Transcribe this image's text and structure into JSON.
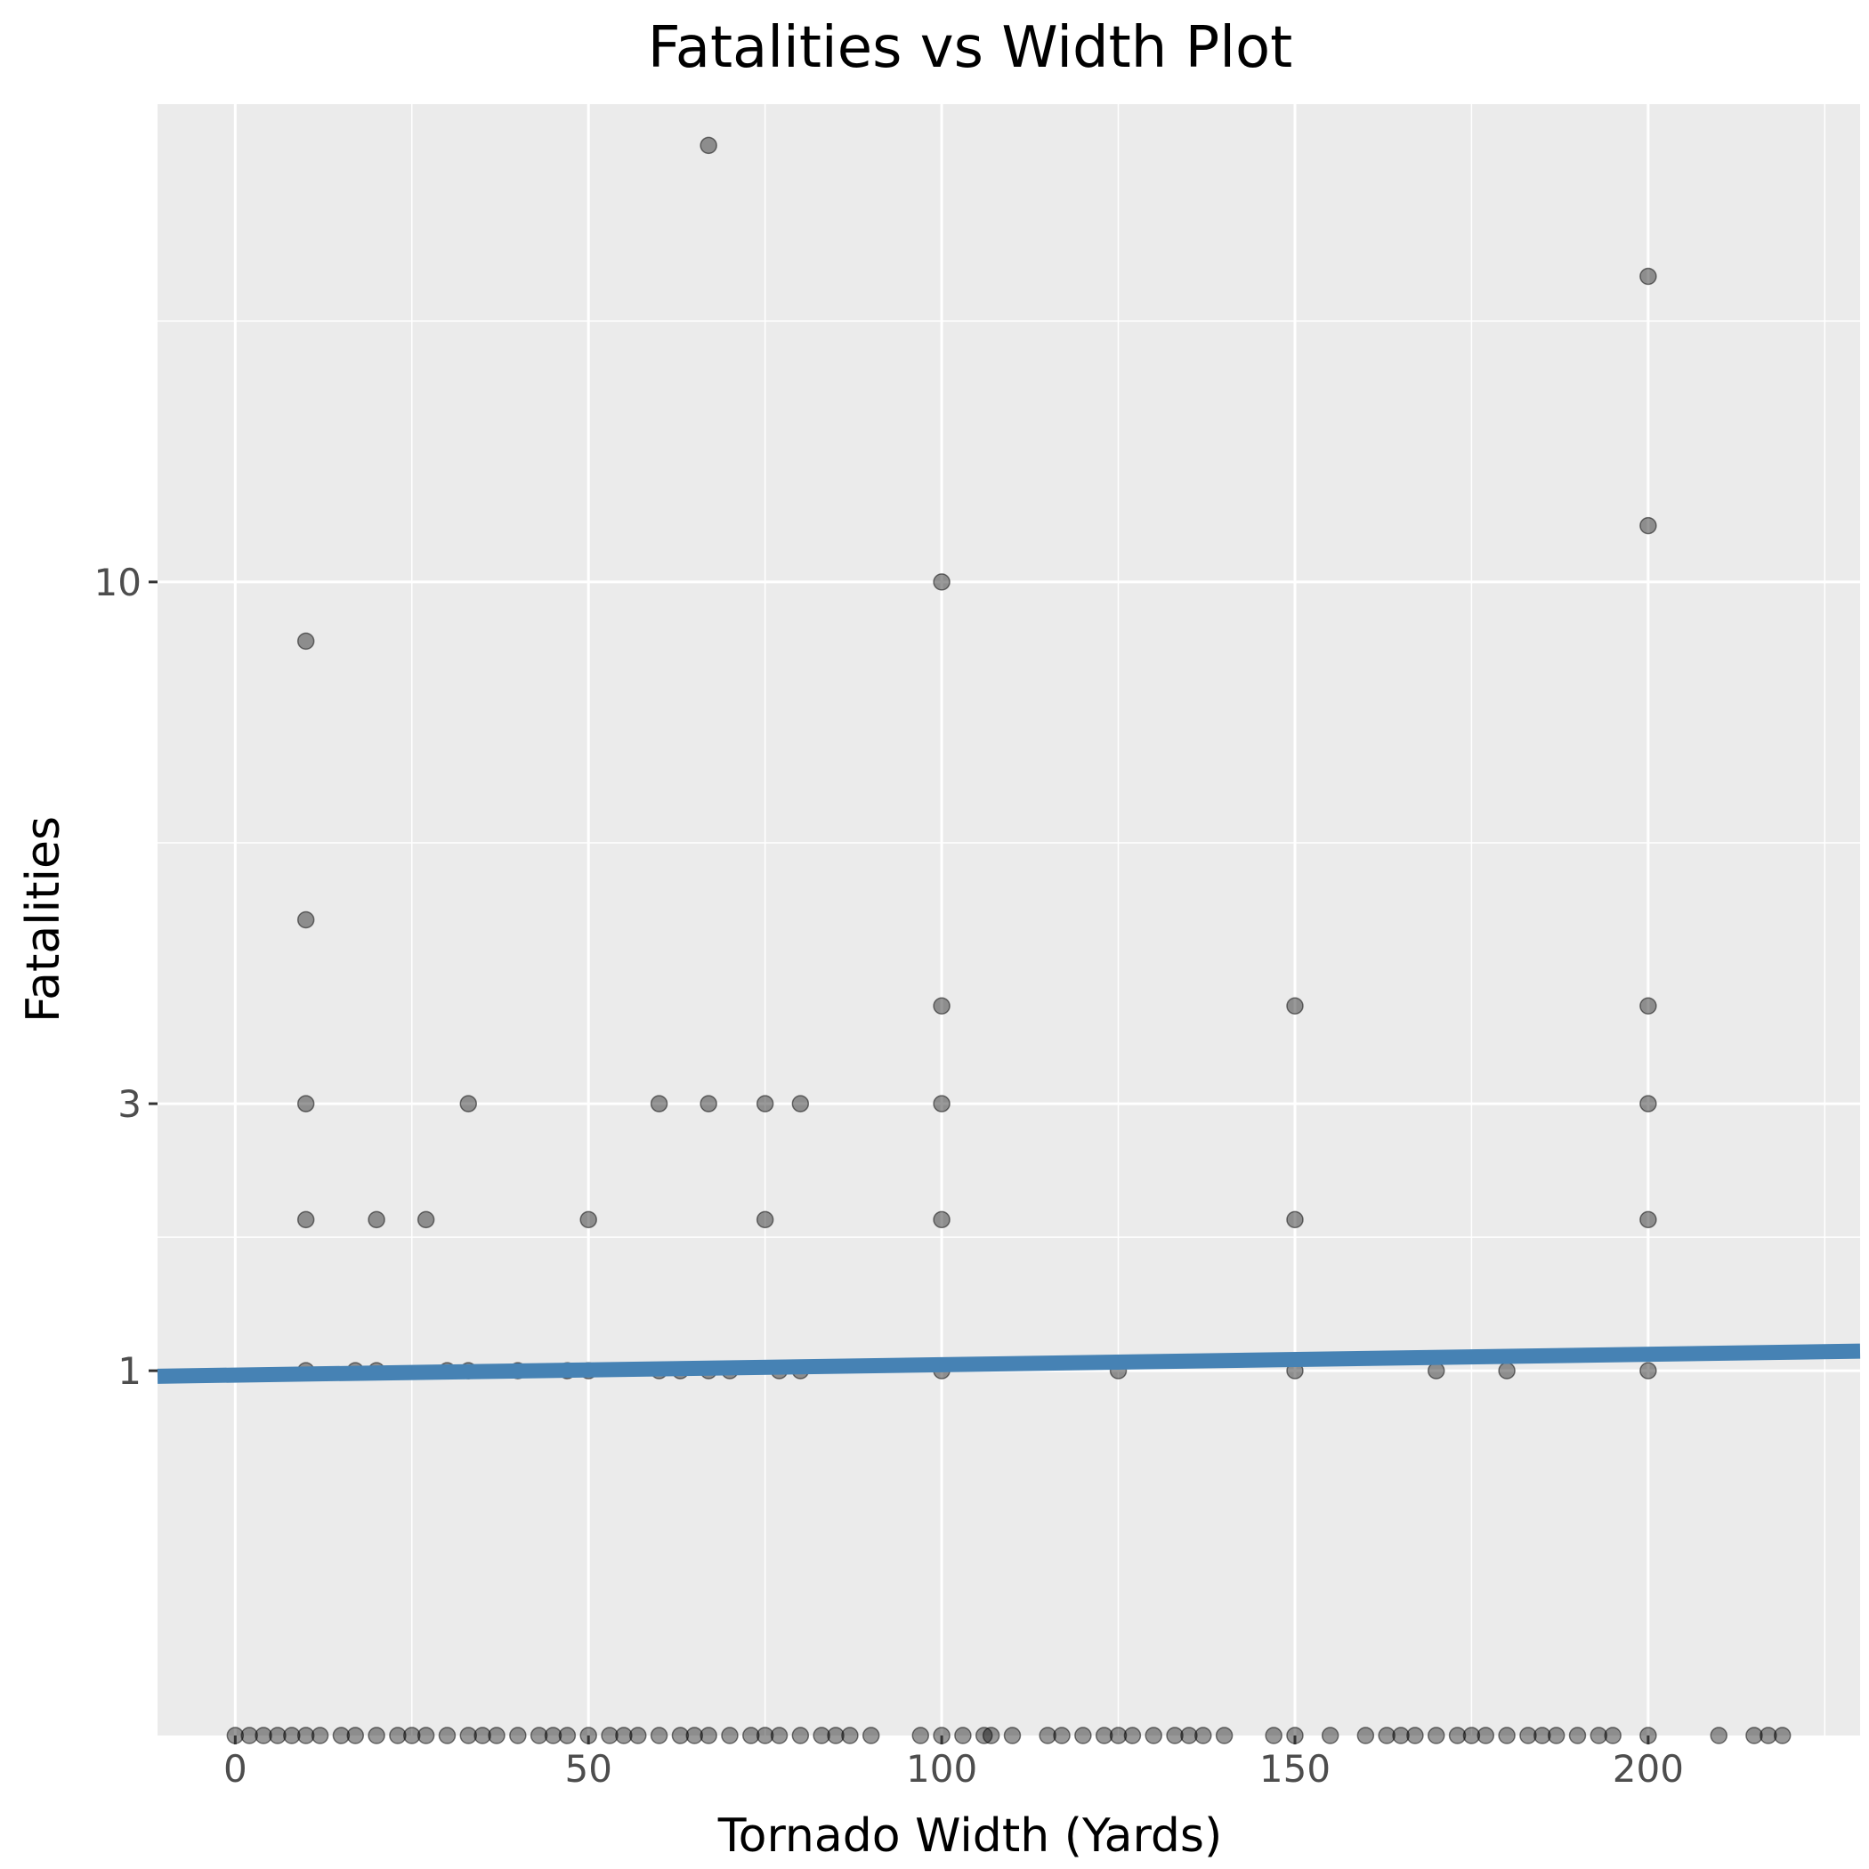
{
  "chart_data": {
    "type": "scatter",
    "title": "Fatalities vs Width Plot",
    "xlabel": "Tornado Width (Yards)",
    "ylabel": "Fatalities",
    "x_scale": "linear",
    "y_scale": "sqrt",
    "xlim": [
      -11,
      230
    ],
    "ylim": [
      0,
      20
    ],
    "x_ticks": [
      0,
      50,
      100,
      150,
      200
    ],
    "x_tick_labels": [
      "0",
      "50",
      "100",
      "150",
      "200"
    ],
    "y_ticks": [
      1,
      3,
      10
    ],
    "y_tick_labels": [
      "1",
      "3",
      "10"
    ],
    "grid": true,
    "legend": "none",
    "colors": {
      "panel": "#ebebeb",
      "grid": "#ffffff",
      "point": "#000000",
      "trend_line": "#4682b4",
      "tick_text": "#4d4d4d"
    },
    "points": [
      [
        67,
        19
      ],
      [
        200,
        16
      ],
      [
        200,
        11
      ],
      [
        100,
        10
      ],
      [
        10,
        9
      ],
      [
        10,
        5
      ],
      [
        100,
        4
      ],
      [
        150,
        4
      ],
      [
        200,
        4
      ],
      [
        10,
        3
      ],
      [
        33,
        3
      ],
      [
        60,
        3
      ],
      [
        67,
        3
      ],
      [
        75,
        3
      ],
      [
        80,
        3
      ],
      [
        100,
        3
      ],
      [
        200,
        3
      ],
      [
        10,
        2
      ],
      [
        20,
        2
      ],
      [
        27,
        2
      ],
      [
        50,
        2
      ],
      [
        75,
        2
      ],
      [
        100,
        2
      ],
      [
        150,
        2
      ],
      [
        200,
        2
      ],
      [
        10,
        1
      ],
      [
        17,
        1
      ],
      [
        20,
        1
      ],
      [
        30,
        1
      ],
      [
        33,
        1
      ],
      [
        40,
        1
      ],
      [
        47,
        1
      ],
      [
        50,
        1
      ],
      [
        60,
        1
      ],
      [
        63,
        1
      ],
      [
        67,
        1
      ],
      [
        70,
        1
      ],
      [
        77,
        1
      ],
      [
        80,
        1
      ],
      [
        100,
        1
      ],
      [
        125,
        1
      ],
      [
        150,
        1
      ],
      [
        170,
        1
      ],
      [
        180,
        1
      ],
      [
        200,
        1
      ],
      [
        0,
        0
      ],
      [
        2,
        0
      ],
      [
        4,
        0
      ],
      [
        6,
        0
      ],
      [
        8,
        0
      ],
      [
        10,
        0
      ],
      [
        12,
        0
      ],
      [
        15,
        0
      ],
      [
        17,
        0
      ],
      [
        20,
        0
      ],
      [
        23,
        0
      ],
      [
        25,
        0
      ],
      [
        27,
        0
      ],
      [
        30,
        0
      ],
      [
        33,
        0
      ],
      [
        35,
        0
      ],
      [
        37,
        0
      ],
      [
        40,
        0
      ],
      [
        43,
        0
      ],
      [
        45,
        0
      ],
      [
        47,
        0
      ],
      [
        50,
        0
      ],
      [
        53,
        0
      ],
      [
        55,
        0
      ],
      [
        57,
        0
      ],
      [
        60,
        0
      ],
      [
        63,
        0
      ],
      [
        65,
        0
      ],
      [
        67,
        0
      ],
      [
        70,
        0
      ],
      [
        73,
        0
      ],
      [
        75,
        0
      ],
      [
        77,
        0
      ],
      [
        80,
        0
      ],
      [
        83,
        0
      ],
      [
        85,
        0
      ],
      [
        87,
        0
      ],
      [
        90,
        0
      ],
      [
        97,
        0
      ],
      [
        100,
        0
      ],
      [
        103,
        0
      ],
      [
        106,
        0
      ],
      [
        107,
        0
      ],
      [
        110,
        0
      ],
      [
        115,
        0
      ],
      [
        117,
        0
      ],
      [
        120,
        0
      ],
      [
        123,
        0
      ],
      [
        125,
        0
      ],
      [
        127,
        0
      ],
      [
        130,
        0
      ],
      [
        133,
        0
      ],
      [
        135,
        0
      ],
      [
        137,
        0
      ],
      [
        140,
        0
      ],
      [
        147,
        0
      ],
      [
        150,
        0
      ],
      [
        155,
        0
      ],
      [
        160,
        0
      ],
      [
        163,
        0
      ],
      [
        165,
        0
      ],
      [
        167,
        0
      ],
      [
        170,
        0
      ],
      [
        173,
        0
      ],
      [
        175,
        0
      ],
      [
        177,
        0
      ],
      [
        180,
        0
      ],
      [
        183,
        0
      ],
      [
        185,
        0
      ],
      [
        187,
        0
      ],
      [
        190,
        0
      ],
      [
        193,
        0
      ],
      [
        195,
        0
      ],
      [
        200,
        0
      ],
      [
        210,
        0
      ],
      [
        215,
        0
      ],
      [
        217,
        0
      ],
      [
        219,
        0
      ]
    ],
    "trend_line": {
      "x": [
        -11,
        230
      ],
      "y": [
        0.97,
        1.11
      ]
    }
  }
}
